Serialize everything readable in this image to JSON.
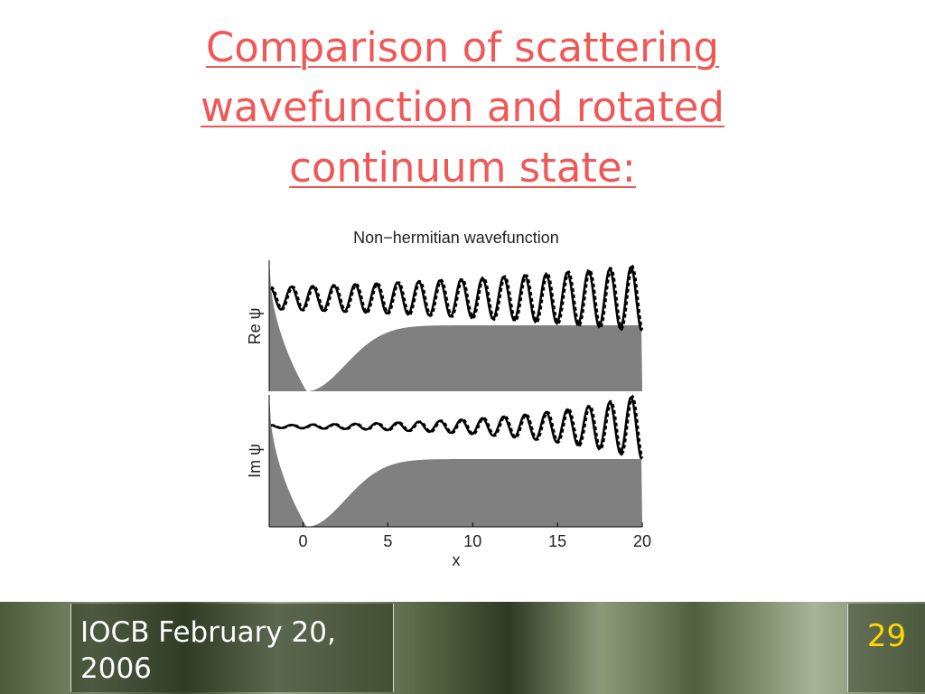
{
  "slide": {
    "title_lines": [
      "Comparison of scattering",
      "wavefunction and rotated",
      "continuum state:"
    ],
    "footer": {
      "text": "IOCB February 20, 2006",
      "page_number": "29"
    }
  },
  "chart_data": {
    "type": "wavefunction-panels",
    "title": "Non−hermitian wavefunction",
    "panels": [
      {
        "ylabel": "Re ψ"
      },
      {
        "ylabel": "Im ψ"
      }
    ],
    "xlabel": "x",
    "xlim": [
      -2,
      20
    ],
    "xticks": [
      0,
      5,
      10,
      15,
      20
    ]
  }
}
